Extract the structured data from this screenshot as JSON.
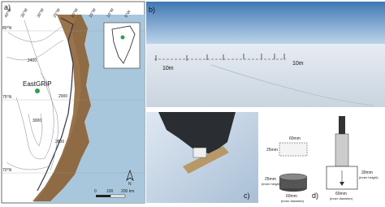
{
  "panels": {
    "a": {
      "label": "a)",
      "longitudes": [
        "40°W",
        "35°W",
        "30°W",
        "25°W",
        "20°W",
        "15°W",
        "10°W",
        "5°W"
      ],
      "latitudes": [
        "80°N",
        "75°N",
        "70°N"
      ],
      "contours": [
        "2400",
        "3000",
        "2800",
        "2000"
      ],
      "site": "EastGRIP",
      "scale": [
        "0",
        "100",
        "200 km"
      ],
      "north": "N"
    },
    "b": {
      "label": "b)",
      "distances": [
        "10m",
        "10m"
      ]
    },
    "c": {
      "label": "c)"
    },
    "d": {
      "label": "d)",
      "small": {
        "top_width": "60mm",
        "top_height": "25mm",
        "height": "25mm",
        "height_note": "(inner height)",
        "width": "60mm",
        "width_note": "(inner diameter)"
      },
      "large": {
        "height": "30mm",
        "height_note": "(inner height)",
        "width": "60mm",
        "width_note": "(inner diameter)"
      }
    }
  }
}
